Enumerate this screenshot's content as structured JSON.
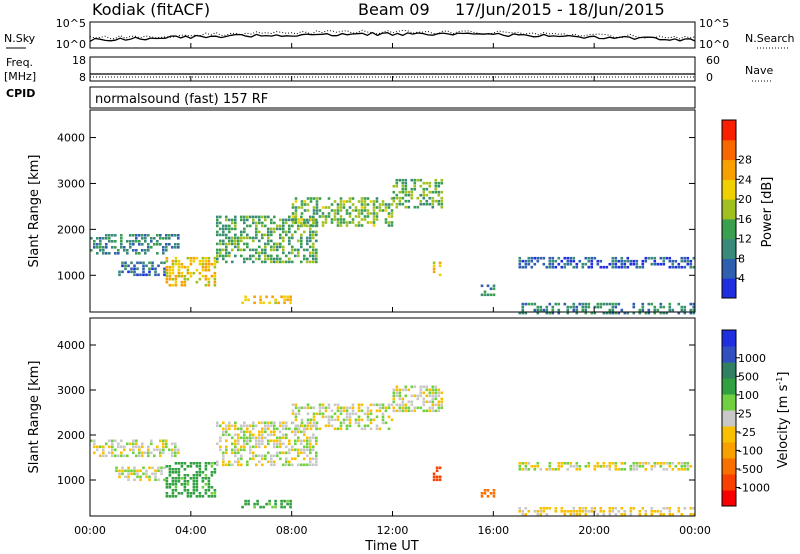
{
  "header": {
    "station": "Kodiak (fitACF)",
    "beam": "Beam 09",
    "date_range": "17/Jun/2015 - 18/Jun/2015"
  },
  "noise_panel": {
    "left_label": "N.Sky",
    "left_ticks": [
      "10^5",
      "10^0"
    ],
    "right_label": "N.Search",
    "right_ticks": [
      "10^5",
      "10^0"
    ]
  },
  "freq_panel": {
    "left_label_line1": "Freq.",
    "left_label_line2": "[MHz]",
    "left_ticks": [
      "18",
      "8"
    ],
    "right_label": "Nave",
    "right_ticks": [
      "60",
      "0"
    ],
    "cpid_label": "CPID",
    "cpid_text": "normalsound (fast) 157 RF"
  },
  "x_axis": {
    "label": "Time UT",
    "tick_labels": [
      "00:00",
      "04:00",
      "08:00",
      "12:00",
      "16:00",
      "20:00",
      "00:00"
    ]
  },
  "chart_data": [
    {
      "type": "heatmap",
      "name": "power",
      "x_range_hours": [
        0,
        24
      ],
      "xlabel": "Time UT",
      "ylabel": "Slant Range [km]",
      "ylim": [
        200,
        4600
      ],
      "y_ticks": [
        1000,
        2000,
        3000,
        4000
      ],
      "colorbar": {
        "label": "Power [dB]",
        "ticks": [
          4,
          8,
          12,
          16,
          20,
          24,
          28
        ],
        "colors": [
          "#1f2fe0",
          "#2f5fb0",
          "#3a8a7a",
          "#3aa050",
          "#a0c020",
          "#f0d000",
          "#f8a000",
          "#f86800",
          "#f82000"
        ]
      },
      "echo_regions": [
        {
          "t0": 0.0,
          "t1": 3.5,
          "r0": 1500,
          "r1": 1900,
          "value": 10
        },
        {
          "t0": 1.0,
          "t1": 3.0,
          "r0": 1000,
          "r1": 1300,
          "value": 8
        },
        {
          "t0": 3.0,
          "t1": 5.0,
          "r0": 800,
          "r1": 1400,
          "value": 22
        },
        {
          "t0": 5.0,
          "t1": 9.0,
          "r0": 1300,
          "r1": 2300,
          "value": 14
        },
        {
          "t0": 6.0,
          "t1": 8.0,
          "r0": 420,
          "r1": 560,
          "value": 24
        },
        {
          "t0": 8.0,
          "t1": 12.0,
          "r0": 2100,
          "r1": 2700,
          "value": 16
        },
        {
          "t0": 12.0,
          "t1": 14.0,
          "r0": 2500,
          "r1": 3100,
          "value": 14
        },
        {
          "t0": 13.6,
          "t1": 13.9,
          "r0": 1000,
          "r1": 1300,
          "value": 22
        },
        {
          "t0": 15.5,
          "t1": 16.0,
          "r0": 600,
          "r1": 800,
          "value": 10
        },
        {
          "t0": 17.0,
          "t1": 24.0,
          "r0": 200,
          "r1": 400,
          "value": 10
        },
        {
          "t0": 17.0,
          "t1": 24.0,
          "r0": 1200,
          "r1": 1400,
          "value": 6
        }
      ]
    },
    {
      "type": "heatmap",
      "name": "velocity",
      "x_range_hours": [
        0,
        24
      ],
      "xlabel": "Time UT",
      "ylabel": "Slant Range [km]",
      "ylim": [
        200,
        4600
      ],
      "y_ticks": [
        1000,
        2000,
        3000,
        4000
      ],
      "colorbar": {
        "label": "Velocity [m s",
        "label_sup": "-1",
        "label_end": "]",
        "ticks": [
          "1000",
          "500",
          "100",
          "25",
          "-25",
          "-100",
          "-500",
          "-1000"
        ],
        "colors": [
          "#1f2fe0",
          "#3050c0",
          "#2f8060",
          "#30a040",
          "#70d040",
          "#c8c8c8",
          "#f8c000",
          "#f8a000",
          "#f87000",
          "#f84000",
          "#f80000"
        ]
      },
      "echo_regions": [
        {
          "t0": 0.0,
          "t1": 3.5,
          "r0": 1500,
          "r1": 1900,
          "value": 0
        },
        {
          "t0": 1.0,
          "t1": 3.0,
          "r0": 1000,
          "r1": 1300,
          "value": 0
        },
        {
          "t0": 3.0,
          "t1": 5.0,
          "r0": 600,
          "r1": 1400,
          "value": 150
        },
        {
          "t0": 5.0,
          "t1": 9.0,
          "r0": 1300,
          "r1": 2300,
          "value": 0
        },
        {
          "t0": 6.0,
          "t1": 8.0,
          "r0": 420,
          "r1": 560,
          "value": 150
        },
        {
          "t0": 8.0,
          "t1": 12.0,
          "r0": 2100,
          "r1": 2700,
          "value": 0
        },
        {
          "t0": 12.0,
          "t1": 14.0,
          "r0": 2500,
          "r1": 3100,
          "value": 0
        },
        {
          "t0": 13.6,
          "t1": 13.9,
          "r0": 1000,
          "r1": 1300,
          "value": -700
        },
        {
          "t0": 15.5,
          "t1": 16.0,
          "r0": 600,
          "r1": 800,
          "value": -200
        },
        {
          "t0": 17.0,
          "t1": 24.0,
          "r0": 200,
          "r1": 400,
          "value": -40
        },
        {
          "t0": 17.0,
          "t1": 24.0,
          "r0": 1200,
          "r1": 1400,
          "value": 0
        }
      ]
    }
  ]
}
